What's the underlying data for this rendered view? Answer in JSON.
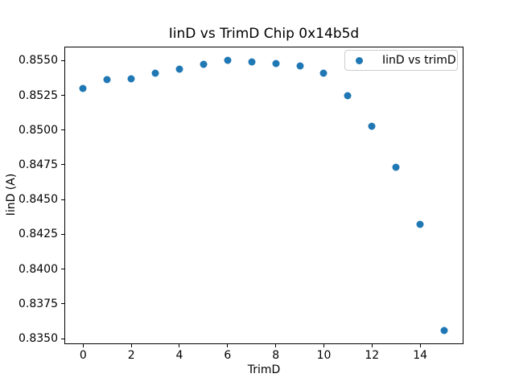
{
  "title": "IinD vs TrimD Chip 0x14b5d",
  "chart_data": {
    "type": "scatter",
    "title": "IinD vs TrimD Chip 0x14b5d",
    "xlabel": "TrimD",
    "ylabel": "IinD (A)",
    "legend": {
      "entries": [
        "IinD vs trimD"
      ],
      "position": "upper right",
      "marker": "dot-icon"
    },
    "marker_color": "#1f77b4",
    "x": [
      0,
      1,
      2,
      3,
      4,
      5,
      6,
      7,
      8,
      9,
      10,
      11,
      12,
      13,
      14,
      15
    ],
    "y": [
      0.853,
      0.8536,
      0.8537,
      0.8541,
      0.8544,
      0.8547,
      0.855,
      0.8549,
      0.8548,
      0.8546,
      0.8541,
      0.8525,
      0.8503,
      0.8473,
      0.8432,
      0.8356
    ],
    "xlim": [
      -0.78,
      15.8
    ],
    "ylim": [
      0.8346,
      0.856
    ],
    "xticks": [
      0,
      2,
      4,
      6,
      8,
      10,
      12,
      14
    ],
    "xtick_labels": [
      "0",
      "2",
      "4",
      "6",
      "8",
      "10",
      "12",
      "14"
    ],
    "yticks": [
      0.835,
      0.8375,
      0.84,
      0.8425,
      0.845,
      0.8475,
      0.85,
      0.8525,
      0.855
    ],
    "ytick_labels": [
      "0.8350",
      "0.8375",
      "0.8400",
      "0.8425",
      "0.8450",
      "0.8475",
      "0.8500",
      "0.8525",
      "0.8550"
    ],
    "grid": false
  }
}
